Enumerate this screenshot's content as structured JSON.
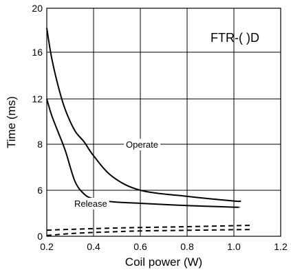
{
  "chart_data": {
    "type": "line",
    "title": "",
    "xlabel": "Coil power (W)",
    "ylabel": "Time (ms)",
    "xlim": [
      0.2,
      1.2
    ],
    "ylim": [
      0,
      20
    ],
    "x_ticks": [
      0.2,
      0.4,
      0.6,
      0.8,
      1.0,
      1.2
    ],
    "x_tick_labels": [
      "0.2",
      "0.4",
      "0.6",
      "0.8",
      "1.0",
      "1.2"
    ],
    "y_ticks": [
      0,
      6,
      8,
      12,
      16,
      20
    ],
    "y_tick_labels": [
      "0",
      "6",
      "8",
      "12",
      "16",
      "20"
    ],
    "grid": true,
    "annotations": {
      "model": "FTR-( )D",
      "operate": "Operate",
      "release": "Release"
    },
    "series": [
      {
        "style": "solid",
        "x": [
          0.2,
          0.22,
          0.25,
          0.28,
          0.32,
          0.36,
          0.4,
          0.48,
          0.6,
          0.8,
          1.0,
          1.03
        ],
        "values": [
          18.2,
          15.6,
          13.0,
          11.0,
          9.2,
          8.2,
          7.5,
          6.6,
          6.0,
          5.2,
          4.6,
          4.6
        ]
      },
      {
        "style": "solid",
        "x": [
          0.2,
          0.22,
          0.25,
          0.28,
          0.32,
          0.36,
          0.4,
          0.48,
          0.6,
          0.8,
          1.0,
          1.02
        ],
        "values": [
          12.0,
          10.6,
          9.0,
          7.7,
          6.4,
          5.5,
          4.9,
          4.5,
          4.3,
          4.0,
          3.8,
          3.8
        ]
      },
      {
        "style": "dashed",
        "x": [
          0.2,
          0.4,
          0.6,
          0.8,
          1.0,
          1.07
        ],
        "values": [
          0.8,
          1.0,
          1.15,
          1.25,
          1.38,
          1.42
        ]
      },
      {
        "style": "dashed",
        "x": [
          0.2,
          0.3,
          0.4,
          0.5,
          0.6,
          0.8,
          1.0,
          1.07
        ],
        "values": [
          0.1,
          0.35,
          0.5,
          0.6,
          0.7,
          0.78,
          0.86,
          0.88
        ]
      }
    ]
  }
}
